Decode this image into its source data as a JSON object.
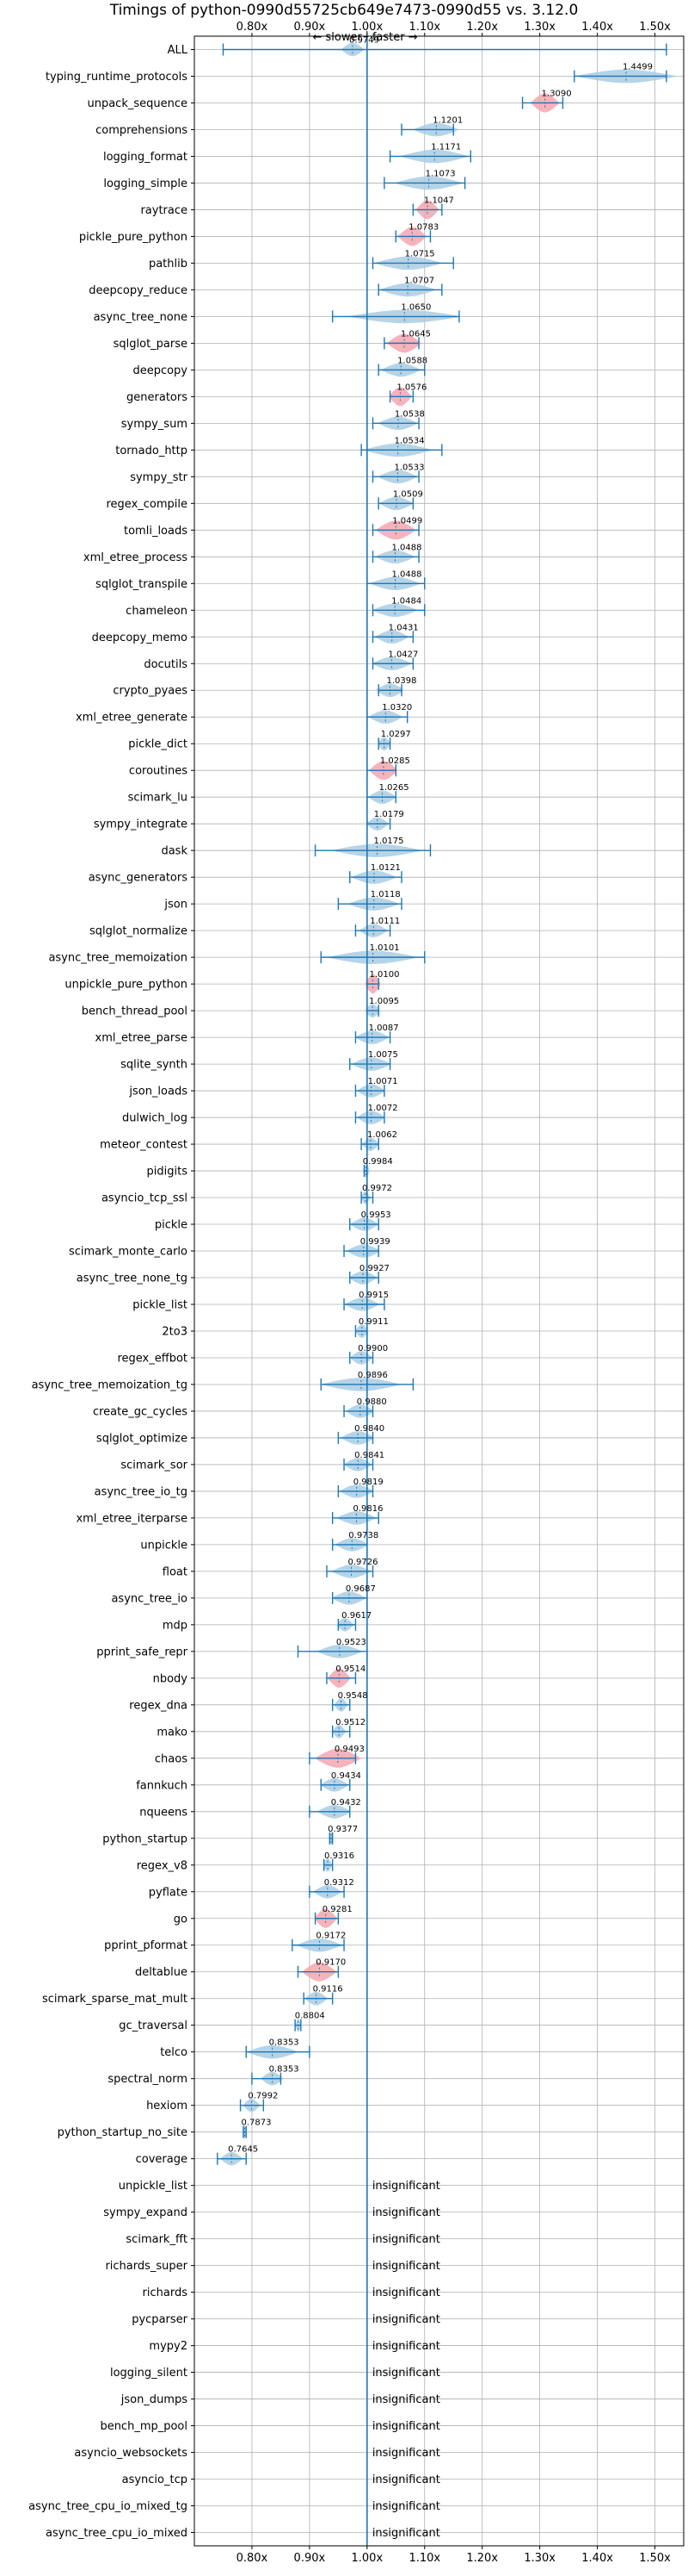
{
  "chart_data": {
    "type": "violin",
    "title": "Timings of python-0990d55725cb649e7473-0990d55 vs. 3.12.0",
    "subtitle": "← slower  |  faster →",
    "subtitle_left": "← slower",
    "subtitle_right": "faster →",
    "xlim": [
      0.7,
      1.55
    ],
    "x_ticks": [
      0.8,
      0.9,
      1.0,
      1.1,
      1.2,
      1.3,
      1.4,
      1.5
    ],
    "x_tick_labels": [
      "0.80x",
      "0.90x",
      "1.00x",
      "1.10x",
      "1.20x",
      "1.30x",
      "1.40x",
      "1.50x"
    ],
    "reference_line": 1.0,
    "grid": true,
    "colors": {
      "normal": "#1f77b4",
      "normal_fill": "#a9cce3",
      "highlight_fill": "#f4a6b0",
      "line": "#1f77b4"
    },
    "insignificant_label": "insignificant",
    "benchmarks": [
      {
        "name": "ALL",
        "value": 0.9749,
        "low": 0.75,
        "high": 1.52,
        "width": 0.02,
        "highlight": false
      },
      {
        "name": "typing_runtime_protocols",
        "value": 1.4499,
        "low": 1.36,
        "high": 1.52,
        "width": 0.09,
        "highlight": false
      },
      {
        "name": "unpack_sequence",
        "value": 1.309,
        "low": 1.27,
        "high": 1.34,
        "width": 0.025,
        "highlight": true
      },
      {
        "name": "comprehensions",
        "value": 1.1201,
        "low": 1.06,
        "high": 1.15,
        "width": 0.04,
        "highlight": false
      },
      {
        "name": "logging_format",
        "value": 1.1171,
        "low": 1.04,
        "high": 1.18,
        "width": 0.06,
        "highlight": false
      },
      {
        "name": "logging_simple",
        "value": 1.1073,
        "low": 1.03,
        "high": 1.17,
        "width": 0.06,
        "highlight": false
      },
      {
        "name": "raytrace",
        "value": 1.1047,
        "low": 1.08,
        "high": 1.13,
        "width": 0.02,
        "highlight": true
      },
      {
        "name": "pickle_pure_python",
        "value": 1.0783,
        "low": 1.05,
        "high": 1.11,
        "width": 0.025,
        "highlight": true
      },
      {
        "name": "pathlib",
        "value": 1.0715,
        "low": 1.01,
        "high": 1.15,
        "width": 0.06,
        "highlight": false
      },
      {
        "name": "deepcopy_reduce",
        "value": 1.0707,
        "low": 1.02,
        "high": 1.13,
        "width": 0.05,
        "highlight": false
      },
      {
        "name": "async_tree_none",
        "value": 1.065,
        "low": 0.94,
        "high": 1.16,
        "width": 0.1,
        "highlight": false
      },
      {
        "name": "sqlglot_parse",
        "value": 1.0645,
        "low": 1.03,
        "high": 1.09,
        "width": 0.03,
        "highlight": true
      },
      {
        "name": "deepcopy",
        "value": 1.0588,
        "low": 1.02,
        "high": 1.1,
        "width": 0.035,
        "highlight": false
      },
      {
        "name": "generators",
        "value": 1.0576,
        "low": 1.04,
        "high": 1.08,
        "width": 0.02,
        "highlight": true
      },
      {
        "name": "sympy_sum",
        "value": 1.0538,
        "low": 1.01,
        "high": 1.09,
        "width": 0.035,
        "highlight": false
      },
      {
        "name": "tornado_http",
        "value": 1.0534,
        "low": 0.99,
        "high": 1.13,
        "width": 0.06,
        "highlight": false
      },
      {
        "name": "sympy_str",
        "value": 1.0533,
        "low": 1.01,
        "high": 1.09,
        "width": 0.035,
        "highlight": false
      },
      {
        "name": "regex_compile",
        "value": 1.0509,
        "low": 1.02,
        "high": 1.08,
        "width": 0.03,
        "highlight": false
      },
      {
        "name": "tomli_loads",
        "value": 1.0499,
        "low": 1.01,
        "high": 1.09,
        "width": 0.035,
        "highlight": true
      },
      {
        "name": "xml_etree_process",
        "value": 1.0488,
        "low": 1.01,
        "high": 1.09,
        "width": 0.035,
        "highlight": false
      },
      {
        "name": "sqlglot_transpile",
        "value": 1.0488,
        "low": 1.0,
        "high": 1.1,
        "width": 0.045,
        "highlight": false
      },
      {
        "name": "chameleon",
        "value": 1.0484,
        "low": 1.01,
        "high": 1.1,
        "width": 0.04,
        "highlight": false
      },
      {
        "name": "deepcopy_memo",
        "value": 1.0431,
        "low": 1.01,
        "high": 1.08,
        "width": 0.03,
        "highlight": false
      },
      {
        "name": "docutils",
        "value": 1.0427,
        "low": 1.01,
        "high": 1.08,
        "width": 0.035,
        "highlight": false
      },
      {
        "name": "crypto_pyaes",
        "value": 1.0398,
        "low": 1.02,
        "high": 1.06,
        "width": 0.025,
        "highlight": false
      },
      {
        "name": "xml_etree_generate",
        "value": 1.032,
        "low": 1.0,
        "high": 1.07,
        "width": 0.03,
        "highlight": false
      },
      {
        "name": "pickle_dict",
        "value": 1.0297,
        "low": 1.02,
        "high": 1.04,
        "width": 0.012,
        "highlight": false
      },
      {
        "name": "coroutines",
        "value": 1.0285,
        "low": 1.0,
        "high": 1.05,
        "width": 0.025,
        "highlight": true
      },
      {
        "name": "scimark_lu",
        "value": 1.0265,
        "low": 1.0,
        "high": 1.05,
        "width": 0.025,
        "highlight": false
      },
      {
        "name": "sympy_integrate",
        "value": 1.0179,
        "low": 1.0,
        "high": 1.04,
        "width": 0.02,
        "highlight": false
      },
      {
        "name": "dask",
        "value": 1.0175,
        "low": 0.91,
        "high": 1.11,
        "width": 0.08,
        "highlight": false
      },
      {
        "name": "async_generators",
        "value": 1.0121,
        "low": 0.97,
        "high": 1.06,
        "width": 0.04,
        "highlight": false
      },
      {
        "name": "json",
        "value": 1.0118,
        "low": 0.95,
        "high": 1.06,
        "width": 0.045,
        "highlight": false
      },
      {
        "name": "sqlglot_normalize",
        "value": 1.0111,
        "low": 0.98,
        "high": 1.04,
        "width": 0.025,
        "highlight": false
      },
      {
        "name": "async_tree_memoization",
        "value": 1.0101,
        "low": 0.92,
        "high": 1.1,
        "width": 0.08,
        "highlight": false
      },
      {
        "name": "unpickle_pure_python",
        "value": 1.01,
        "low": 1.0,
        "high": 1.02,
        "width": 0.014,
        "highlight": true
      },
      {
        "name": "bench_thread_pool",
        "value": 1.0095,
        "low": 1.0,
        "high": 1.02,
        "width": 0.014,
        "highlight": false
      },
      {
        "name": "xml_etree_parse",
        "value": 1.0087,
        "low": 0.98,
        "high": 1.04,
        "width": 0.03,
        "highlight": false
      },
      {
        "name": "sqlite_synth",
        "value": 1.0075,
        "low": 0.97,
        "high": 1.04,
        "width": 0.035,
        "highlight": false
      },
      {
        "name": "json_loads",
        "value": 1.0071,
        "low": 0.98,
        "high": 1.03,
        "width": 0.025,
        "highlight": false
      },
      {
        "name": "dulwich_log",
        "value": 1.0072,
        "low": 0.98,
        "high": 1.03,
        "width": 0.025,
        "highlight": false
      },
      {
        "name": "meteor_contest",
        "value": 1.0062,
        "low": 0.99,
        "high": 1.02,
        "width": 0.015,
        "highlight": false
      },
      {
        "name": "pidigits",
        "value": 0.9984,
        "low": 0.995,
        "high": 1.0,
        "width": 0.006,
        "highlight": false
      },
      {
        "name": "asyncio_tcp_ssl",
        "value": 0.9972,
        "low": 0.99,
        "high": 1.01,
        "width": 0.008,
        "highlight": false
      },
      {
        "name": "pickle",
        "value": 0.9953,
        "low": 0.97,
        "high": 1.02,
        "width": 0.025,
        "highlight": false
      },
      {
        "name": "scimark_monte_carlo",
        "value": 0.9939,
        "low": 0.96,
        "high": 1.02,
        "width": 0.03,
        "highlight": false
      },
      {
        "name": "async_tree_none_tg",
        "value": 0.9927,
        "low": 0.97,
        "high": 1.02,
        "width": 0.025,
        "highlight": false
      },
      {
        "name": "pickle_list",
        "value": 0.9915,
        "low": 0.96,
        "high": 1.03,
        "width": 0.03,
        "highlight": false
      },
      {
        "name": "2to3",
        "value": 0.9911,
        "low": 0.98,
        "high": 1.0,
        "width": 0.012,
        "highlight": false
      },
      {
        "name": "regex_effbot",
        "value": 0.99,
        "low": 0.97,
        "high": 1.01,
        "width": 0.02,
        "highlight": false
      },
      {
        "name": "async_tree_memoization_tg",
        "value": 0.9896,
        "low": 0.92,
        "high": 1.08,
        "width": 0.07,
        "highlight": false
      },
      {
        "name": "create_gc_cycles",
        "value": 0.988,
        "low": 0.96,
        "high": 1.01,
        "width": 0.025,
        "highlight": false
      },
      {
        "name": "sqlglot_optimize",
        "value": 0.984,
        "low": 0.95,
        "high": 1.01,
        "width": 0.03,
        "highlight": false
      },
      {
        "name": "scimark_sor",
        "value": 0.9841,
        "low": 0.96,
        "high": 1.01,
        "width": 0.025,
        "highlight": false
      },
      {
        "name": "async_tree_io_tg",
        "value": 0.9819,
        "low": 0.95,
        "high": 1.01,
        "width": 0.03,
        "highlight": false
      },
      {
        "name": "xml_etree_iterparse",
        "value": 0.9816,
        "low": 0.94,
        "high": 1.02,
        "width": 0.035,
        "highlight": false
      },
      {
        "name": "unpickle",
        "value": 0.9738,
        "low": 0.94,
        "high": 1.0,
        "width": 0.03,
        "highlight": false
      },
      {
        "name": "float",
        "value": 0.9726,
        "low": 0.93,
        "high": 1.01,
        "width": 0.035,
        "highlight": false
      },
      {
        "name": "async_tree_io",
        "value": 0.9687,
        "low": 0.94,
        "high": 1.0,
        "width": 0.03,
        "highlight": false
      },
      {
        "name": "mdp",
        "value": 0.9617,
        "low": 0.95,
        "high": 0.98,
        "width": 0.015,
        "highlight": false
      },
      {
        "name": "pprint_safe_repr",
        "value": 0.9523,
        "low": 0.88,
        "high": 1.0,
        "width": 0.04,
        "highlight": false
      },
      {
        "name": "nbody",
        "value": 0.9514,
        "low": 0.93,
        "high": 0.98,
        "width": 0.02,
        "highlight": true
      },
      {
        "name": "regex_dna",
        "value": 0.9548,
        "low": 0.94,
        "high": 0.97,
        "width": 0.012,
        "highlight": false
      },
      {
        "name": "mako",
        "value": 0.9512,
        "low": 0.94,
        "high": 0.97,
        "width": 0.012,
        "highlight": false
      },
      {
        "name": "chaos",
        "value": 0.9493,
        "low": 0.9,
        "high": 0.98,
        "width": 0.04,
        "highlight": true
      },
      {
        "name": "fannkuch",
        "value": 0.9434,
        "low": 0.92,
        "high": 0.97,
        "width": 0.025,
        "highlight": false
      },
      {
        "name": "nqueens",
        "value": 0.9432,
        "low": 0.9,
        "high": 0.97,
        "width": 0.03,
        "highlight": false
      },
      {
        "name": "python_startup",
        "value": 0.9377,
        "low": 0.935,
        "high": 0.94,
        "width": 0.004,
        "highlight": false
      },
      {
        "name": "regex_v8",
        "value": 0.9316,
        "low": 0.925,
        "high": 0.94,
        "width": 0.008,
        "highlight": false
      },
      {
        "name": "pyflate",
        "value": 0.9312,
        "low": 0.9,
        "high": 0.96,
        "width": 0.025,
        "highlight": false
      },
      {
        "name": "go",
        "value": 0.9281,
        "low": 0.91,
        "high": 0.95,
        "width": 0.02,
        "highlight": true
      },
      {
        "name": "pprint_pformat",
        "value": 0.9172,
        "low": 0.87,
        "high": 0.96,
        "width": 0.04,
        "highlight": false
      },
      {
        "name": "deltablue",
        "value": 0.917,
        "low": 0.88,
        "high": 0.95,
        "width": 0.03,
        "highlight": true
      },
      {
        "name": "scimark_sparse_mat_mult",
        "value": 0.9116,
        "low": 0.89,
        "high": 0.94,
        "width": 0.02,
        "highlight": false
      },
      {
        "name": "gc_traversal",
        "value": 0.8804,
        "low": 0.875,
        "high": 0.885,
        "width": 0.005,
        "highlight": false
      },
      {
        "name": "telco",
        "value": 0.8353,
        "low": 0.79,
        "high": 0.9,
        "width": 0.045,
        "highlight": false
      },
      {
        "name": "spectral_norm",
        "value": 0.8353,
        "low": 0.8,
        "high": 0.85,
        "width": 0.02,
        "highlight": false
      },
      {
        "name": "hexiom",
        "value": 0.7992,
        "low": 0.78,
        "high": 0.82,
        "width": 0.015,
        "highlight": false
      },
      {
        "name": "python_startup_no_site",
        "value": 0.7873,
        "low": 0.785,
        "high": 0.79,
        "width": 0.004,
        "highlight": false
      },
      {
        "name": "coverage",
        "value": 0.7645,
        "low": 0.74,
        "high": 0.79,
        "width": 0.02,
        "highlight": false
      },
      {
        "name": "unpickle_list",
        "insignificant": true
      },
      {
        "name": "sympy_expand",
        "insignificant": true
      },
      {
        "name": "scimark_fft",
        "insignificant": true
      },
      {
        "name": "richards_super",
        "insignificant": true
      },
      {
        "name": "richards",
        "insignificant": true
      },
      {
        "name": "pycparser",
        "insignificant": true
      },
      {
        "name": "mypy2",
        "insignificant": true
      },
      {
        "name": "logging_silent",
        "insignificant": true
      },
      {
        "name": "json_dumps",
        "insignificant": true
      },
      {
        "name": "bench_mp_pool",
        "insignificant": true
      },
      {
        "name": "asyncio_websockets",
        "insignificant": true
      },
      {
        "name": "asyncio_tcp",
        "insignificant": true
      },
      {
        "name": "async_tree_cpu_io_mixed_tg",
        "insignificant": true
      },
      {
        "name": "async_tree_cpu_io_mixed",
        "insignificant": true
      }
    ],
    "value_labels": [
      "0.9749",
      "1.4499",
      "1.3090",
      "1.1201",
      "1.1171",
      "1.1073",
      "1.1047",
      "1.0783",
      "1.0715",
      "1.0707",
      "1.0650",
      "1.0645",
      "1.0588",
      "1.0576",
      "1.0538",
      "1.0534",
      "1.0533",
      "1.0509",
      "1.0499",
      "1.0488",
      "1.0488",
      "1.0484",
      "1.0431",
      "1.0427",
      "1.0398",
      "1.0320",
      "1.0297",
      "1.0285",
      "1.0265",
      "1.0179",
      "1.0175",
      "1.0121",
      "1.0118",
      "1.0111",
      "1.0101",
      "1.0100",
      "1.0095",
      "1.0087",
      "1.0075",
      "1.0071",
      "1.0072",
      "1.0062",
      "0.9984",
      "0.9972",
      "0.9953",
      "0.9939",
      "0.9927",
      "0.9915",
      "0.9911",
      "0.9900",
      "0.9896",
      "0.9880",
      "0.9840",
      "0.9841",
      "0.9819",
      "0.9816",
      "0.9738",
      "0.9726",
      "0.9687",
      "0.9617",
      "0.9523",
      "0.9514",
      "0.9548",
      "0.9512",
      "0.9493",
      "0.9434",
      "0.9432",
      "0.9377",
      "0.9316",
      "0.9312",
      "0.9281",
      "0.9172",
      "0.9170",
      "0.9116",
      "0.8804",
      "0.8353",
      "0.8353",
      "0.7992",
      "0.7873",
      "0.7645"
    ]
  }
}
